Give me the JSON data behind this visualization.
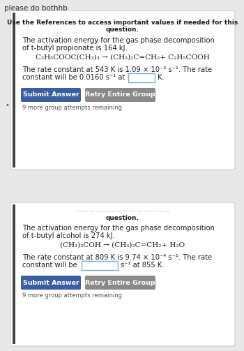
{
  "page_bg": "#e8e8e8",
  "card_bg": "#ffffff",
  "card_border": "#cccccc",
  "top_label": "please do bothhb",
  "panel1": {
    "header1": "Use the References to access important values if needed for this",
    "header2": "question.",
    "body1": "The activation energy for the gas phase decomposition",
    "body2": "of t-butyl propionate is 164 kJ.",
    "equation": "C₂H₅COOC(CH₃)₃ → (CH₃)₂C=CH₂+ C₂H₅COOH",
    "rate1": "The rate constant at 543 K is 1.09 × 10⁻³ s⁻¹. The rate",
    "rate2a": "constant will be 0.0160 s⁻¹ at",
    "rate2b": "K.",
    "btn1": "Submit Answer",
    "btn2": "Retry Entire Group",
    "footer": "9 more group attempts remaining"
  },
  "panel2": {
    "header_strikethrough": "--- --- --- --- --- --- --- --- --- --- --- --- --- ---",
    "header2": "question.",
    "body1": "The activation energy for the gas phase decomposition",
    "body2": "of t-butyl alcohol is 274 kJ.",
    "equation": "(CH₃)₃COH → (CH₃)₂C=CH₂+ H₂O",
    "rate1": "The rate constant at 809 K is 9.74 × 10⁻⁴ s⁻¹. The rate",
    "rate2a": "constant will be",
    "rate2b": "s⁻¹ at 855 K.",
    "btn1": "Submit Answer",
    "btn2": "Retry Entire Group",
    "footer": "9 more group attempts remaining"
  },
  "btn_blue": "#3a5fa0",
  "btn_gray": "#8a8a8a",
  "btn_text": "#ffffff",
  "input_border": "#7ab0d4",
  "input_bg": "#ffffff",
  "text_dark": "#1a1a1a",
  "text_body": "#222222",
  "text_small": "#555555",
  "accent_bar": "#444444"
}
